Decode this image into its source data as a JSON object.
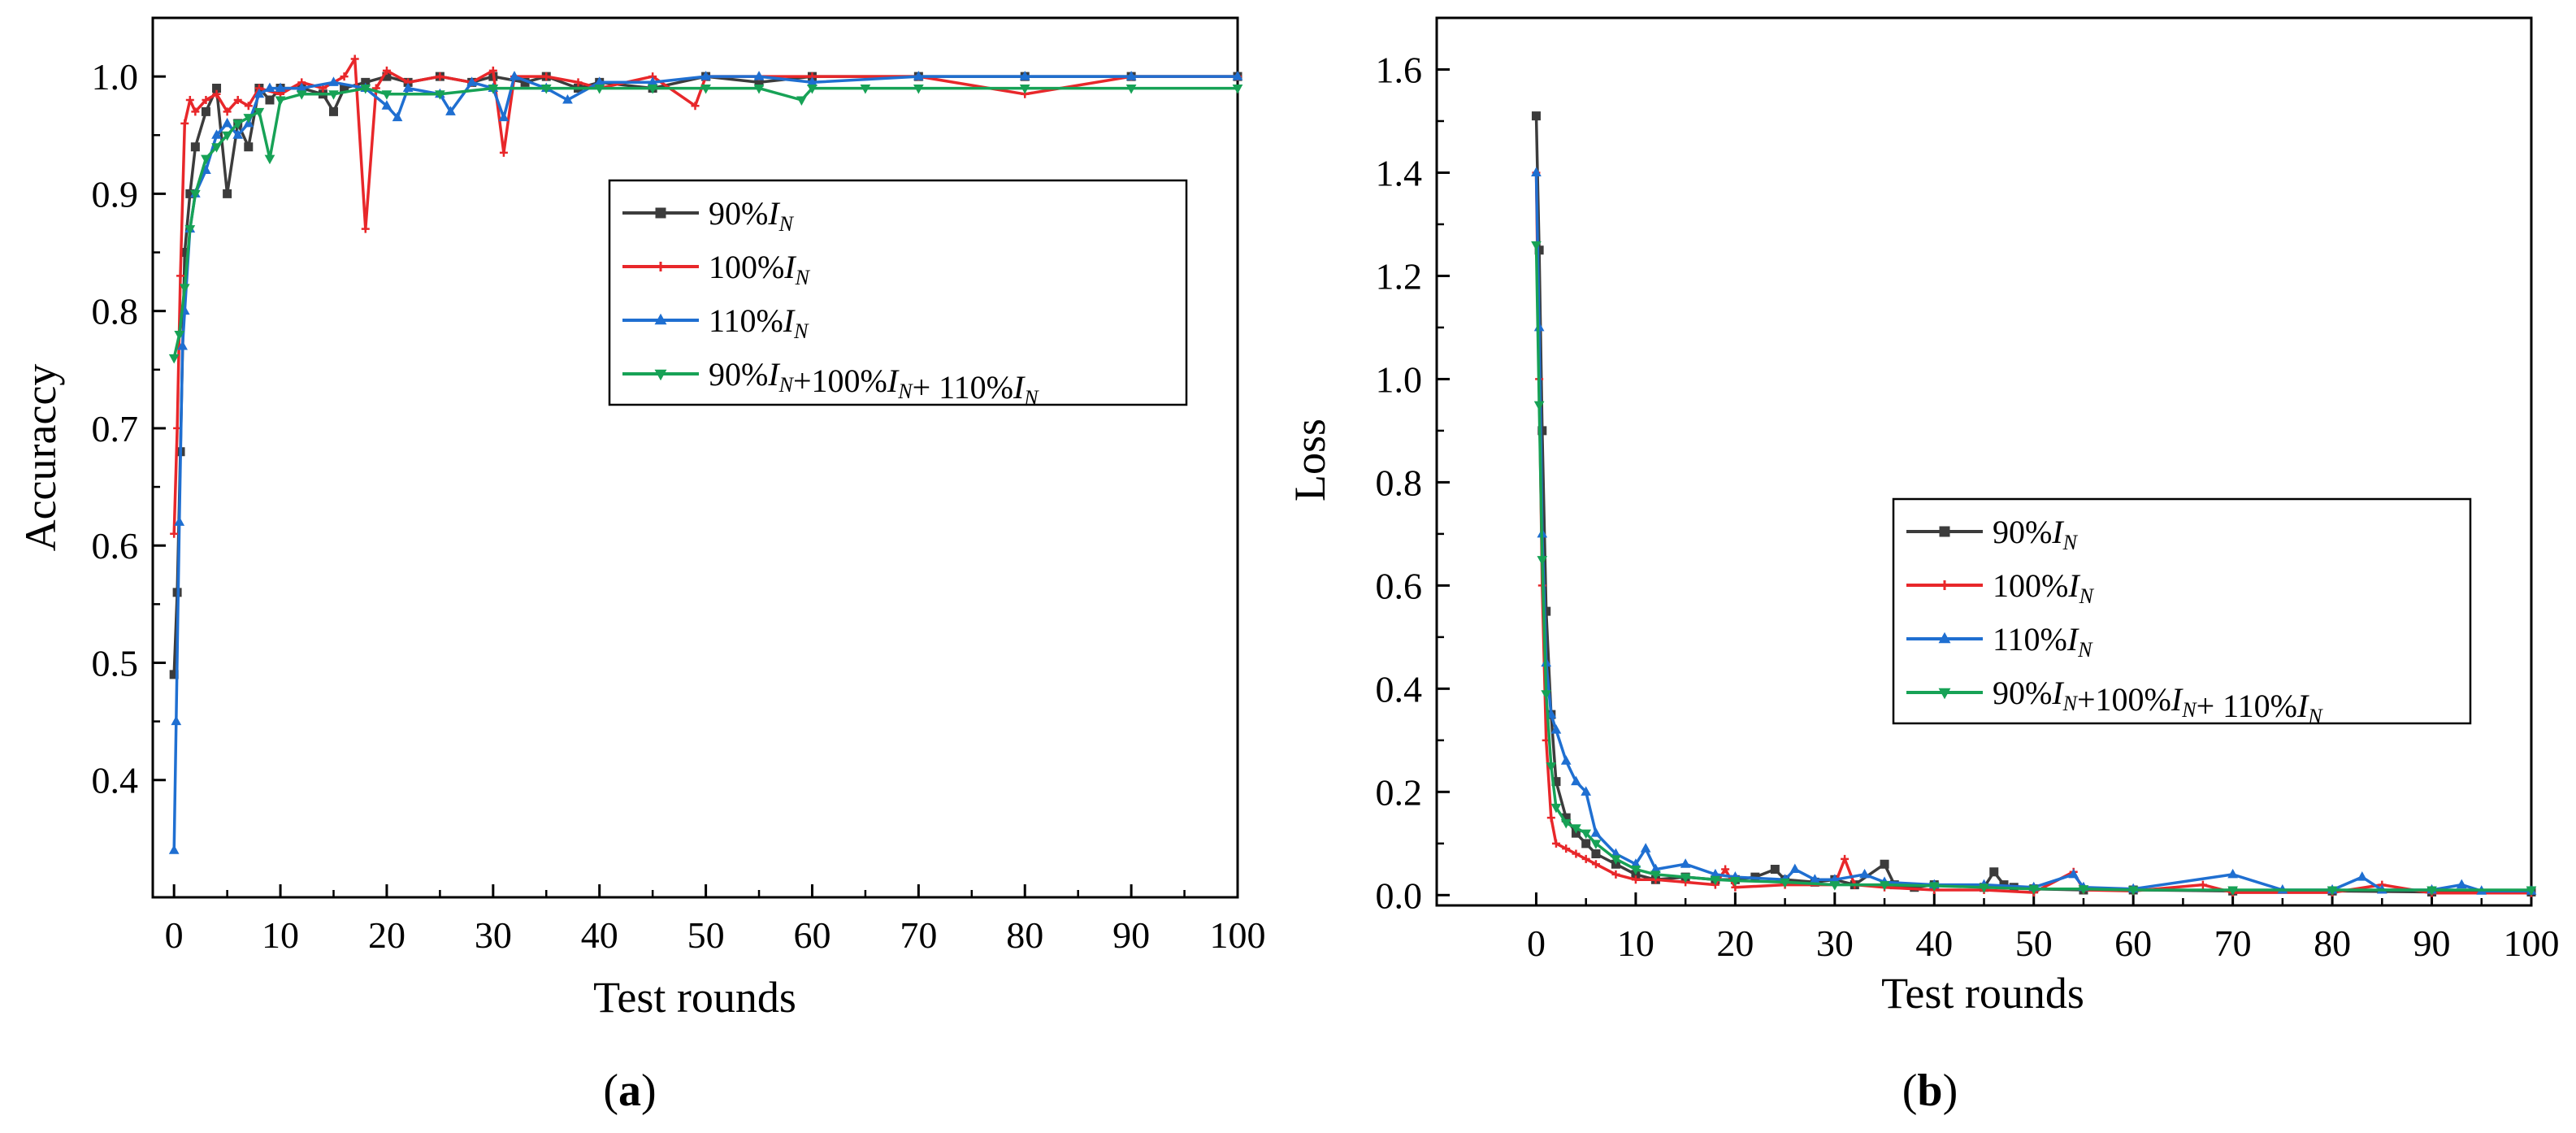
{
  "chart_data": [
    {
      "type": "line",
      "panel_label": "a",
      "xlabel": "Test rounds",
      "ylabel": "Accuraccy",
      "xlim": [
        -2,
        100
      ],
      "ylim": [
        0.3,
        1.05
      ],
      "xticks": [
        0,
        10,
        20,
        30,
        40,
        50,
        60,
        70,
        80,
        90,
        100
      ],
      "yticks": [
        0.4,
        0.5,
        0.6,
        0.7,
        0.8,
        0.9,
        1.0
      ],
      "ytick_labels": [
        "0.4",
        "0.5",
        "0.6",
        "0.7",
        "0.8",
        "0.9",
        "1.0"
      ],
      "legend_position": "center-right",
      "series": [
        {
          "name": "90%IN",
          "legend_prefix": "90%",
          "color": "#3c3c3c",
          "marker": "square",
          "x": [
            0,
            0.3,
            0.6,
            1,
            1.5,
            2,
            3,
            4,
            5,
            6,
            7,
            8,
            9,
            10,
            12,
            14,
            15,
            16,
            18,
            20,
            22,
            25,
            28,
            30,
            33,
            35,
            38,
            40,
            45,
            50,
            55,
            60,
            70,
            80,
            90,
            100
          ],
          "y": [
            0.49,
            0.56,
            0.68,
            0.85,
            0.9,
            0.94,
            0.97,
            0.99,
            0.9,
            0.96,
            0.94,
            0.99,
            0.98,
            0.99,
            0.99,
            0.985,
            0.97,
            0.99,
            0.995,
            1.0,
            0.995,
            1.0,
            0.995,
            1.0,
            0.995,
            1.0,
            0.99,
            0.995,
            0.99,
            1.0,
            0.995,
            1.0,
            1.0,
            1.0,
            1.0,
            1.0
          ]
        },
        {
          "name": "100%IN",
          "legend_prefix": "100%",
          "color": "#e8272a",
          "marker": "plus",
          "x": [
            0,
            0.3,
            0.6,
            1,
            1.5,
            2,
            3,
            4,
            5,
            6,
            7,
            8,
            10,
            12,
            14,
            16,
            17,
            18,
            19,
            20,
            22,
            25,
            28,
            30,
            31,
            32,
            35,
            38,
            40,
            45,
            49,
            50,
            55,
            60,
            70,
            80,
            90,
            100
          ],
          "y": [
            0.61,
            0.7,
            0.83,
            0.96,
            0.98,
            0.97,
            0.98,
            0.985,
            0.97,
            0.98,
            0.975,
            0.99,
            0.985,
            0.995,
            0.99,
            1.0,
            1.015,
            0.87,
            0.99,
            1.005,
            0.995,
            1.0,
            0.995,
            1.005,
            0.935,
            1.0,
            1.0,
            0.995,
            0.99,
            1.0,
            0.975,
            1.0,
            1.0,
            1.0,
            1.0,
            0.985,
            1.0,
            1.0
          ]
        },
        {
          "name": "110%IN",
          "legend_prefix": "110%",
          "color": "#1f6fd1",
          "marker": "triangle",
          "x": [
            0,
            0.2,
            0.5,
            0.8,
            1,
            1.5,
            2,
            3,
            4,
            5,
            6,
            7,
            8,
            9,
            10,
            12,
            15,
            18,
            20,
            21,
            22,
            25,
            26,
            28,
            30,
            31,
            32,
            35,
            37,
            40,
            45,
            50,
            55,
            60,
            70,
            80,
            90,
            100
          ],
          "y": [
            0.34,
            0.45,
            0.62,
            0.77,
            0.8,
            0.87,
            0.9,
            0.92,
            0.95,
            0.96,
            0.95,
            0.96,
            0.985,
            0.99,
            0.99,
            0.99,
            0.995,
            0.99,
            0.975,
            0.965,
            0.99,
            0.985,
            0.97,
            0.995,
            0.99,
            0.965,
            1.0,
            0.99,
            0.98,
            0.995,
            0.995,
            1.0,
            1.0,
            0.995,
            1.0,
            1.0,
            1.0,
            1.0
          ]
        },
        {
          "name": "90%IN+100%IN+ 110%IN",
          "legend_prefix": "90%",
          "color": "#17a256",
          "marker": "triangle-down",
          "x": [
            0,
            0.5,
            1,
            1.5,
            2,
            3,
            4,
            5,
            6,
            7,
            8,
            9,
            10,
            12,
            15,
            18,
            20,
            25,
            30,
            35,
            40,
            45,
            50,
            55,
            59,
            60,
            65,
            70,
            80,
            90,
            100
          ],
          "y": [
            0.76,
            0.78,
            0.82,
            0.87,
            0.9,
            0.93,
            0.94,
            0.95,
            0.96,
            0.965,
            0.97,
            0.93,
            0.98,
            0.985,
            0.985,
            0.99,
            0.985,
            0.985,
            0.99,
            0.99,
            0.99,
            0.99,
            0.99,
            0.99,
            0.98,
            0.99,
            0.99,
            0.99,
            0.99,
            0.99,
            0.99
          ]
        }
      ]
    },
    {
      "type": "line",
      "panel_label": "b",
      "xlabel": "Test rounds",
      "ylabel": "Loss",
      "xlim": [
        -10,
        100
      ],
      "ylim": [
        -0.02,
        1.7
      ],
      "xticks": [
        0,
        10,
        20,
        30,
        40,
        50,
        60,
        70,
        80,
        90,
        100
      ],
      "yticks": [
        0.0,
        0.2,
        0.4,
        0.6,
        0.8,
        1.0,
        1.2,
        1.4,
        1.6
      ],
      "ytick_labels": [
        "0.0",
        "0.2",
        "0.4",
        "0.6",
        "0.8",
        "1.0",
        "1.2",
        "1.4",
        "1.6"
      ],
      "legend_position": "center-right",
      "series": [
        {
          "name": "90%IN",
          "legend_prefix": "90%",
          "color": "#3c3c3c",
          "marker": "square",
          "x": [
            0,
            0.3,
            0.6,
            1,
            1.5,
            2,
            3,
            4,
            5,
            6,
            8,
            10,
            12,
            15,
            18,
            20,
            22,
            24,
            25,
            28,
            30,
            32,
            35,
            36,
            38,
            40,
            45,
            46,
            47,
            48,
            50,
            55,
            60,
            70,
            80,
            90,
            100
          ],
          "y": [
            1.51,
            1.25,
            0.9,
            0.55,
            0.35,
            0.22,
            0.15,
            0.12,
            0.1,
            0.08,
            0.06,
            0.04,
            0.03,
            0.035,
            0.03,
            0.03,
            0.035,
            0.05,
            0.03,
            0.025,
            0.03,
            0.02,
            0.06,
            0.02,
            0.015,
            0.02,
            0.015,
            0.045,
            0.02,
            0.015,
            0.012,
            0.01,
            0.01,
            0.008,
            0.008,
            0.006,
            0.006
          ]
        },
        {
          "name": "100%IN",
          "legend_prefix": "100%",
          "color": "#e8272a",
          "marker": "plus",
          "x": [
            0,
            0.3,
            0.6,
            1,
            1.5,
            2,
            3,
            4,
            5,
            6,
            8,
            10,
            12,
            15,
            18,
            19,
            20,
            25,
            30,
            31,
            32,
            35,
            40,
            45,
            50,
            54,
            55,
            60,
            67,
            70,
            80,
            85,
            90,
            100
          ],
          "y": [
            1.4,
            1.0,
            0.6,
            0.3,
            0.15,
            0.1,
            0.09,
            0.08,
            0.07,
            0.06,
            0.04,
            0.03,
            0.03,
            0.025,
            0.02,
            0.05,
            0.015,
            0.02,
            0.02,
            0.07,
            0.02,
            0.015,
            0.01,
            0.01,
            0.005,
            0.045,
            0.01,
            0.008,
            0.02,
            0.005,
            0.005,
            0.02,
            0.004,
            0.004
          ]
        },
        {
          "name": "110%IN",
          "legend_prefix": "110%",
          "color": "#1f6fd1",
          "marker": "triangle",
          "x": [
            0,
            0.3,
            0.6,
            1,
            1.5,
            2,
            3,
            4,
            5,
            6,
            8,
            10,
            11,
            12,
            15,
            18,
            20,
            25,
            26,
            28,
            30,
            33,
            35,
            40,
            45,
            50,
            54,
            55,
            60,
            70,
            75,
            80,
            83,
            85,
            90,
            93,
            95,
            100
          ],
          "y": [
            1.4,
            1.1,
            0.7,
            0.45,
            0.35,
            0.32,
            0.26,
            0.22,
            0.2,
            0.12,
            0.08,
            0.06,
            0.09,
            0.05,
            0.06,
            0.04,
            0.035,
            0.03,
            0.05,
            0.03,
            0.03,
            0.04,
            0.025,
            0.02,
            0.02,
            0.015,
            0.04,
            0.015,
            0.012,
            0.04,
            0.01,
            0.01,
            0.035,
            0.01,
            0.01,
            0.02,
            0.008,
            0.008
          ]
        },
        {
          "name": "90%IN+100%IN+ 110%IN",
          "legend_prefix": "90%",
          "color": "#17a256",
          "marker": "triangle-down",
          "x": [
            0,
            0.3,
            0.6,
            1,
            1.5,
            2,
            3,
            4,
            5,
            6,
            8,
            10,
            12,
            15,
            18,
            20,
            25,
            30,
            35,
            40,
            45,
            50,
            55,
            60,
            70,
            80,
            90,
            100
          ],
          "y": [
            1.26,
            0.95,
            0.65,
            0.39,
            0.25,
            0.17,
            0.14,
            0.13,
            0.12,
            0.1,
            0.07,
            0.05,
            0.04,
            0.035,
            0.03,
            0.028,
            0.025,
            0.02,
            0.02,
            0.018,
            0.015,
            0.012,
            0.012,
            0.01,
            0.01,
            0.01,
            0.01,
            0.01
          ]
        }
      ]
    }
  ],
  "legend_symbol": "I",
  "legend_subscript": "N",
  "legend_combo_mid": "+100%",
  "legend_combo_end": "+ 110%"
}
